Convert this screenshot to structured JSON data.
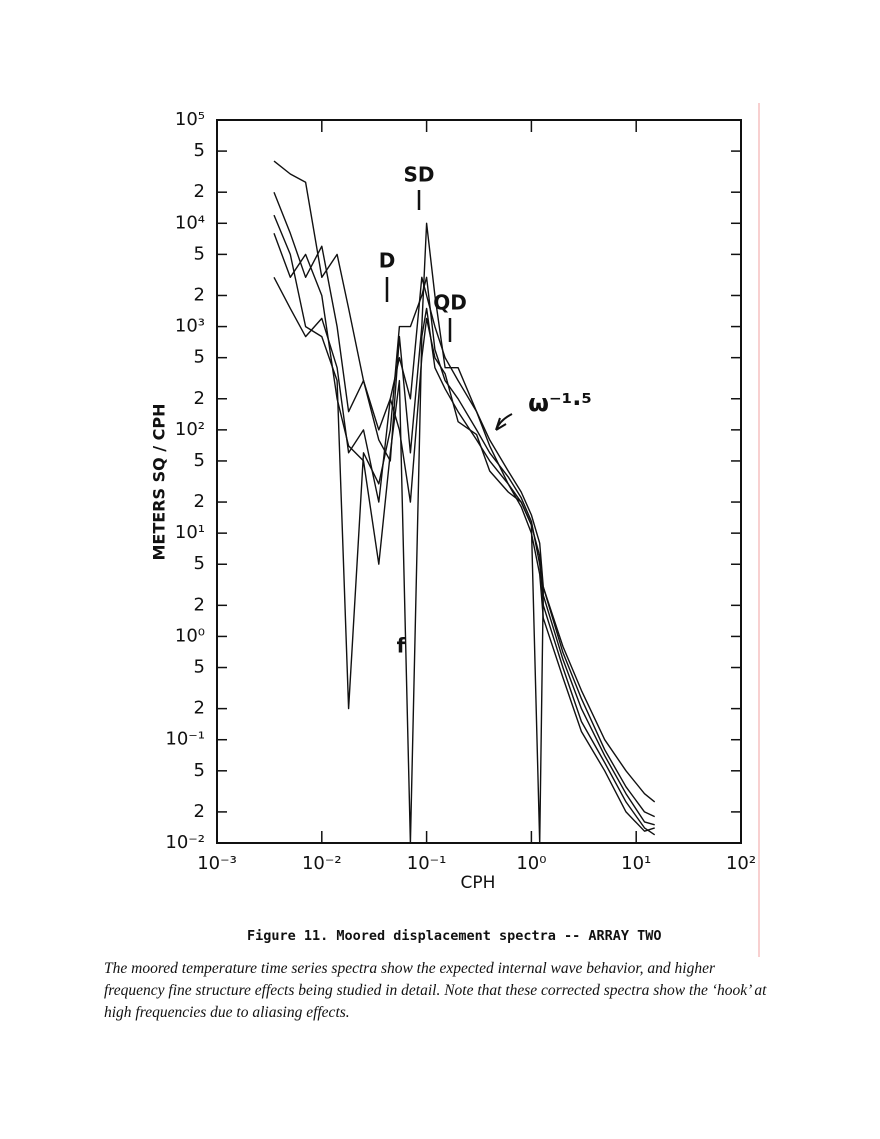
{
  "chart_data": {
    "type": "line",
    "log_x": true,
    "log_y": true,
    "xlabel": "CPH",
    "ylabel": "METERS SQ / CPH",
    "xlim": [
      0.001,
      100
    ],
    "ylim": [
      0.01,
      100000
    ],
    "xticks": [
      {
        "value": 0.001,
        "label": "10⁻³"
      },
      {
        "value": 0.01,
        "label": "10⁻²"
      },
      {
        "value": 0.1,
        "label": "10⁻¹"
      },
      {
        "value": 1,
        "label": "10⁰"
      },
      {
        "value": 10,
        "label": "10¹"
      },
      {
        "value": 100,
        "label": "10²"
      }
    ],
    "yticks": [
      {
        "value": 100000,
        "label": "10⁵"
      },
      {
        "value": 50000,
        "label": "5"
      },
      {
        "value": 20000,
        "label": "2"
      },
      {
        "value": 10000,
        "label": "10⁴"
      },
      {
        "value": 5000,
        "label": "5"
      },
      {
        "value": 2000,
        "label": "2"
      },
      {
        "value": 1000,
        "label": "10³"
      },
      {
        "value": 500,
        "label": "5"
      },
      {
        "value": 200,
        "label": "2"
      },
      {
        "value": 100,
        "label": "10²"
      },
      {
        "value": 50,
        "label": "5"
      },
      {
        "value": 20,
        "label": "2"
      },
      {
        "value": 10,
        "label": "10¹"
      },
      5,
      2,
      {
        "value": 1,
        "label": "10⁰"
      },
      {
        "value": 0.5,
        "label": "5"
      },
      {
        "value": 0.2,
        "label": "2"
      },
      {
        "value": 0.1,
        "label": "10⁻¹"
      },
      {
        "value": 0.05,
        "label": "5"
      },
      {
        "value": 0.02,
        "label": "2"
      },
      {
        "value": 0.01,
        "label": "10⁻²"
      }
    ],
    "x": [
      0.0035,
      0.005,
      0.007,
      0.01,
      0.014,
      0.018,
      0.025,
      0.035,
      0.045,
      0.055,
      0.07,
      0.09,
      0.1,
      0.12,
      0.15,
      0.2,
      0.3,
      0.4,
      0.6,
      0.8,
      1.0,
      1.2,
      1.3,
      2,
      3,
      5,
      8,
      12,
      15
    ],
    "series": [
      {
        "color": "#111111",
        "values": [
          40000,
          30000,
          25000,
          3000,
          5000,
          1500,
          300,
          100,
          200,
          500,
          200,
          3000,
          2000,
          1000,
          500,
          300,
          150,
          80,
          40,
          25,
          15,
          8,
          3,
          0.8,
          0.3,
          0.1,
          0.05,
          0.03,
          0.025
        ]
      },
      {
        "color": "#111111",
        "values": [
          20000,
          8000,
          3000,
          6000,
          1000,
          150,
          300,
          80,
          50,
          800,
          60,
          1000,
          10000,
          2000,
          400,
          400,
          150,
          70,
          30,
          20,
          12,
          6,
          2,
          0.5,
          0.15,
          0.06,
          0.025,
          0.014,
          0.012
        ]
      },
      {
        "color": "#111111",
        "values": [
          12000,
          5000,
          1000,
          800,
          300,
          0.2,
          60,
          30,
          100,
          1000,
          1000,
          2000,
          3000,
          600,
          300,
          200,
          100,
          60,
          35,
          22,
          13,
          5,
          2.5,
          0.6,
          0.2,
          0.07,
          0.03,
          0.016,
          0.015
        ]
      },
      {
        "color": "#111111",
        "values": [
          8000,
          3000,
          5000,
          2000,
          200,
          70,
          50,
          5,
          60,
          300,
          0.01,
          800,
          1500,
          400,
          250,
          150,
          80,
          50,
          30,
          18,
          10,
          4,
          1.5,
          0.4,
          0.12,
          0.05,
          0.02,
          0.013,
          0.014
        ]
      },
      {
        "color": "#111111",
        "values": [
          3000,
          1500,
          800,
          1200,
          400,
          60,
          100,
          20,
          200,
          100,
          20,
          500,
          1200,
          500,
          350,
          120,
          90,
          40,
          25,
          20,
          12,
          0.01,
          3,
          0.7,
          0.25,
          0.08,
          0.035,
          0.02,
          0.018
        ]
      }
    ],
    "annotations": [
      "SD",
      "D",
      "QD",
      "ω⁻¹·⁵",
      "f"
    ]
  },
  "caption": "Figure 11.  Moored displacement spectra -- ARRAY TWO",
  "paragraph": "The moored temperature time series spectra show the expected internal wave behavior, and higher frequency fine structure effects being studied in detail.  Note that these corrected spectra show the ‘hook’ at high frequencies due to aliasing effects."
}
